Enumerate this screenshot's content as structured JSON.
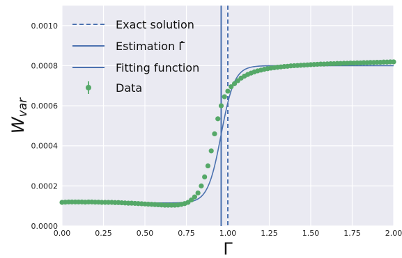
{
  "chart_data": {
    "type": "scatter",
    "xlabel": "Γ",
    "ylabel_main": "W",
    "ylabel_sub": "var",
    "xlim": [
      0.0,
      2.0
    ],
    "ylim": [
      0.0,
      0.0011
    ],
    "x_ticks": [
      "0.00",
      "0.25",
      "0.50",
      "0.75",
      "1.00",
      "1.25",
      "1.50",
      "1.75",
      "2.00"
    ],
    "x_tick_values": [
      0.0,
      0.25,
      0.5,
      0.75,
      1.0,
      1.25,
      1.5,
      1.75,
      2.0
    ],
    "y_ticks": [
      "0.0000",
      "0.0002",
      "0.0004",
      "0.0006",
      "0.0008",
      "0.0010"
    ],
    "y_tick_values": [
      0.0,
      0.0002,
      0.0004,
      0.0006,
      0.0008,
      0.001
    ],
    "grid": true,
    "legend_position": "top-left",
    "legend": [
      {
        "label": "Exact solution",
        "style": "dashed-line"
      },
      {
        "label": "Estimation Γ̂",
        "style": "solid-line"
      },
      {
        "label": "Fitting function",
        "style": "solid-line"
      },
      {
        "label": "Data",
        "style": "marker-errorbar"
      }
    ],
    "exact_solution_x": 1.0,
    "estimation_x": 0.96,
    "fitting_function": {
      "type": "logistic",
      "low": 0.000115,
      "high": 0.0008,
      "center": 0.96,
      "width": 0.04
    },
    "series": [
      {
        "name": "Data",
        "x": [
          0.0,
          0.02,
          0.04,
          0.06,
          0.08,
          0.1,
          0.12,
          0.14,
          0.16,
          0.18,
          0.2,
          0.22,
          0.24,
          0.26,
          0.28,
          0.3,
          0.32,
          0.34,
          0.36,
          0.38,
          0.4,
          0.42,
          0.44,
          0.46,
          0.48,
          0.5,
          0.52,
          0.54,
          0.56,
          0.58,
          0.6,
          0.62,
          0.64,
          0.66,
          0.68,
          0.7,
          0.72,
          0.74,
          0.76,
          0.78,
          0.8,
          0.82,
          0.84,
          0.86,
          0.88,
          0.9,
          0.92,
          0.94,
          0.96,
          0.98,
          1.0,
          1.02,
          1.04,
          1.06,
          1.08,
          1.1,
          1.12,
          1.14,
          1.16,
          1.18,
          1.2,
          1.22,
          1.24,
          1.26,
          1.28,
          1.3,
          1.32,
          1.34,
          1.36,
          1.38,
          1.4,
          1.42,
          1.44,
          1.46,
          1.48,
          1.5,
          1.52,
          1.54,
          1.56,
          1.58,
          1.6,
          1.62,
          1.64,
          1.66,
          1.68,
          1.7,
          1.72,
          1.74,
          1.76,
          1.78,
          1.8,
          1.82,
          1.84,
          1.86,
          1.88,
          1.9,
          1.92,
          1.94,
          1.96,
          1.98,
          2.0
        ],
        "y": [
          0.000118,
          0.000119,
          0.00012,
          0.00012,
          0.00012,
          0.00012,
          0.00012,
          0.000119,
          0.00012,
          0.00012,
          0.000119,
          0.000119,
          0.000118,
          0.000118,
          0.000118,
          0.000118,
          0.000117,
          0.000117,
          0.000116,
          0.000115,
          0.000114,
          0.000114,
          0.000113,
          0.000112,
          0.000111,
          0.00011,
          0.000109,
          0.000108,
          0.000107,
          0.000106,
          0.000105,
          0.000104,
          0.000104,
          0.000104,
          0.000104,
          0.000105,
          0.000108,
          0.000112,
          0.000118,
          0.00013,
          0.000145,
          0.000165,
          0.0002,
          0.000245,
          0.0003,
          0.000375,
          0.00046,
          0.000535,
          0.0006,
          0.000645,
          0.000673,
          0.000695,
          0.00071,
          0.000725,
          0.000738,
          0.000748,
          0.000756,
          0.000763,
          0.000769,
          0.000774,
          0.000778,
          0.000782,
          0.000785,
          0.000788,
          0.00079,
          0.000792,
          0.000794,
          0.000796,
          0.000797,
          0.000799,
          0.0008,
          0.000801,
          0.000802,
          0.000803,
          0.000804,
          0.000805,
          0.000806,
          0.000807,
          0.000808,
          0.000808,
          0.000809,
          0.00081,
          0.00081,
          0.000811,
          0.000811,
          0.000812,
          0.000812,
          0.000813,
          0.000813,
          0.000814,
          0.000814,
          0.000815,
          0.000815,
          0.000816,
          0.000816,
          0.000817,
          0.000817,
          0.000818,
          0.000818,
          0.000819,
          0.000819
        ]
      }
    ],
    "colors": {
      "background": "#eaeaf2",
      "grid": "#ffffff",
      "line": "#4c72b0",
      "data": "#55a868"
    }
  }
}
